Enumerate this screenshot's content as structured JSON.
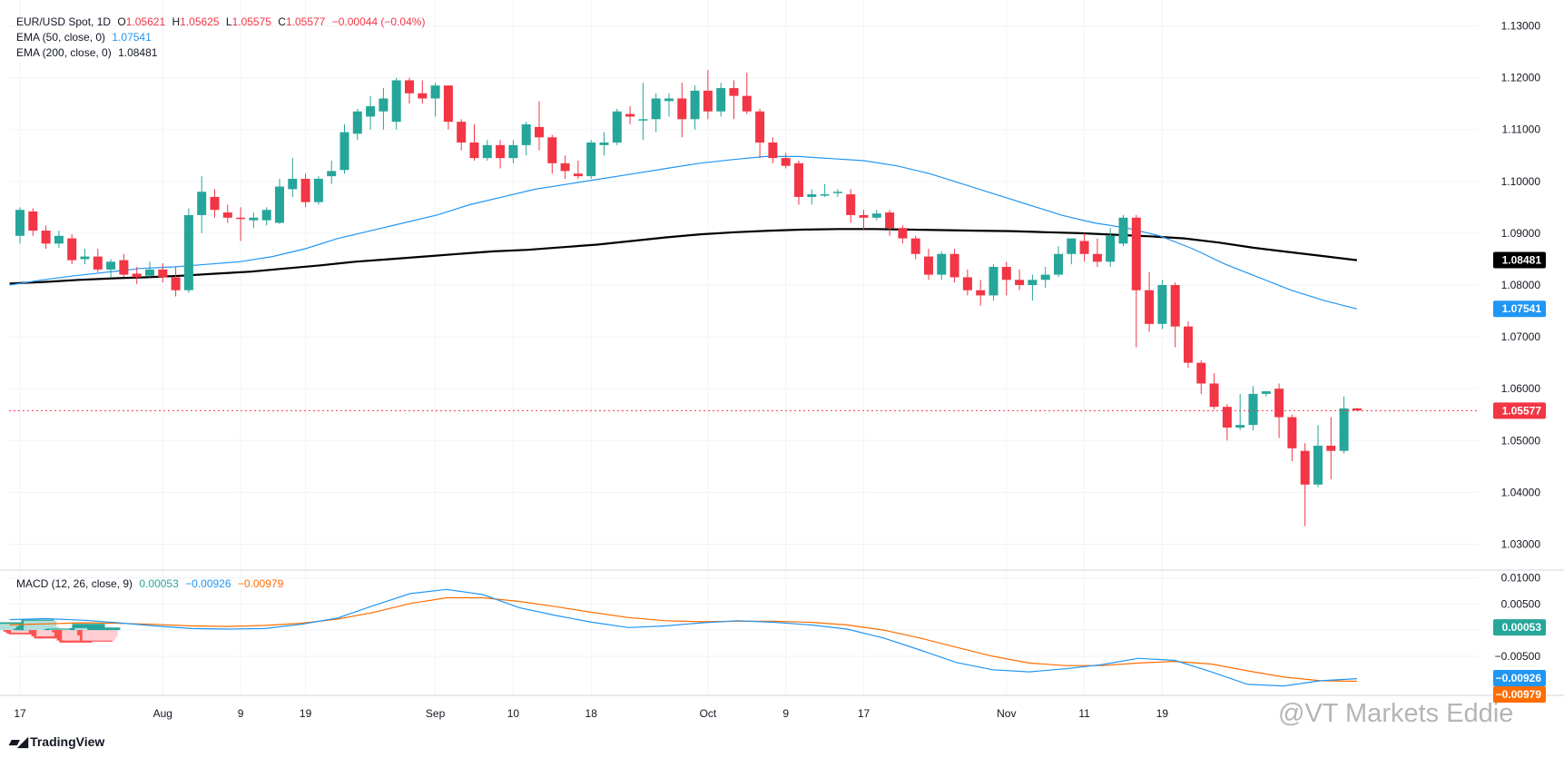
{
  "header": {
    "symbol": "EUR/USD Spot, 1D",
    "ohlc": {
      "o": "1.05621",
      "h": "1.05625",
      "l": "1.05575",
      "c": "1.05577",
      "chg": "−0.00044 (−0.04%)"
    },
    "ema50_label": "EMA (50, close, 0)",
    "ema50_value": "1.07541",
    "ema200_label": "EMA (200, close, 0)",
    "ema200_value": "1.08481",
    "macd_label": "MACD (12, 26, close, 9)",
    "macd_hist_value": "0.00053",
    "macd_value": "−0.00926",
    "macd_signal_value": "−0.00979"
  },
  "footer": {
    "brand": "TradingView",
    "watermark": "@VT Markets Eddie"
  },
  "colors": {
    "up": "#26a69a",
    "down": "#f23645",
    "ema50": "#2196f3",
    "ema200": "#000000",
    "macd": "#2196f3",
    "signal": "#ff6d00",
    "hist_up_strong": "#26a69a",
    "hist_up_weak": "#b2dfdb",
    "hist_down_strong": "#ff5252",
    "hist_down_weak": "#ffcdd2"
  },
  "chart_data": [
    {
      "type": "candlestick",
      "title": "EUR/USD Spot, 1D",
      "ylim": [
        1.025,
        1.135
      ],
      "y_ticks": [
        "1.13000",
        "1.12000",
        "1.11000",
        "1.10000",
        "1.09000",
        "1.08000",
        "1.07000",
        "1.06000",
        "1.05000",
        "1.04000",
        "1.03000"
      ],
      "x_ticks": [
        "17",
        "Aug",
        "9",
        "19",
        "Sep",
        "10",
        "18",
        "Oct",
        "9",
        "17",
        "Nov",
        "11",
        "19"
      ],
      "last_price_label": "1.05577",
      "ema200_label": "1.08481",
      "ema50_label": "1.07541",
      "candles": [
        [
          1.0895,
          1.095,
          1.088,
          1.0945
        ],
        [
          1.0942,
          1.0948,
          1.0895,
          1.0905
        ],
        [
          1.0905,
          1.0915,
          1.087,
          1.088
        ],
        [
          1.088,
          1.0905,
          1.0872,
          1.0895
        ],
        [
          1.089,
          1.0898,
          1.084,
          1.0848
        ],
        [
          1.085,
          1.087,
          1.084,
          1.0855
        ],
        [
          1.0855,
          1.087,
          1.0825,
          1.083
        ],
        [
          1.083,
          1.085,
          1.0815,
          1.0845
        ],
        [
          1.0848,
          1.086,
          1.0815,
          1.082
        ],
        [
          1.0822,
          1.0835,
          1.0802,
          1.0815
        ],
        [
          1.0818,
          1.0845,
          1.0815,
          1.083
        ],
        [
          1.083,
          1.0842,
          1.0805,
          1.0815
        ],
        [
          1.0815,
          1.0835,
          1.0778,
          1.079
        ],
        [
          1.079,
          1.0948,
          1.0785,
          1.0935
        ],
        [
          1.0935,
          1.101,
          1.09,
          1.098
        ],
        [
          1.097,
          1.0985,
          1.093,
          1.0945
        ],
        [
          1.094,
          1.0955,
          1.092,
          1.093
        ],
        [
          1.093,
          1.095,
          1.0885,
          1.0928
        ],
        [
          1.0925,
          1.094,
          1.091,
          1.093
        ],
        [
          1.0925,
          1.095,
          1.0915,
          1.0945
        ],
        [
          1.092,
          1.1005,
          1.0918,
          1.099
        ],
        [
          1.0985,
          1.1045,
          1.097,
          1.1005
        ],
        [
          1.1005,
          1.1015,
          1.095,
          1.096
        ],
        [
          1.096,
          1.101,
          1.0955,
          1.1005
        ],
        [
          1.101,
          1.104,
          1.0995,
          1.102
        ],
        [
          1.1022,
          1.111,
          1.1015,
          1.1095
        ],
        [
          1.1092,
          1.114,
          1.108,
          1.1135
        ],
        [
          1.1125,
          1.1165,
          1.11,
          1.1145
        ],
        [
          1.1135,
          1.118,
          1.11,
          1.116
        ],
        [
          1.1115,
          1.12,
          1.11,
          1.1195
        ],
        [
          1.1195,
          1.12,
          1.115,
          1.117
        ],
        [
          1.117,
          1.1195,
          1.115,
          1.116
        ],
        [
          1.116,
          1.119,
          1.1125,
          1.1185
        ],
        [
          1.1185,
          1.1185,
          1.11,
          1.1115
        ],
        [
          1.1115,
          1.112,
          1.106,
          1.1075
        ],
        [
          1.1075,
          1.111,
          1.104,
          1.1045
        ],
        [
          1.1045,
          1.108,
          1.104,
          1.107
        ],
        [
          1.107,
          1.108,
          1.1025,
          1.1045
        ],
        [
          1.1045,
          1.108,
          1.1035,
          1.107
        ],
        [
          1.107,
          1.1115,
          1.105,
          1.111
        ],
        [
          1.1105,
          1.1155,
          1.106,
          1.1085
        ],
        [
          1.1085,
          1.109,
          1.1015,
          1.1035
        ],
        [
          1.1035,
          1.105,
          1.1005,
          1.102
        ],
        [
          1.1015,
          1.104,
          1.1005,
          1.101
        ],
        [
          1.101,
          1.108,
          1.1005,
          1.1075
        ],
        [
          1.107,
          1.1095,
          1.105,
          1.1075
        ],
        [
          1.1075,
          1.114,
          1.107,
          1.1135
        ],
        [
          1.113,
          1.1145,
          1.111,
          1.1125
        ],
        [
          1.112,
          1.119,
          1.108,
          1.112
        ],
        [
          1.112,
          1.117,
          1.1095,
          1.116
        ],
        [
          1.1155,
          1.117,
          1.1125,
          1.116
        ],
        [
          1.116,
          1.119,
          1.1085,
          1.112
        ],
        [
          1.112,
          1.1185,
          1.11,
          1.1175
        ],
        [
          1.1175,
          1.1215,
          1.112,
          1.1135
        ],
        [
          1.1135,
          1.119,
          1.1125,
          1.118
        ],
        [
          1.118,
          1.1195,
          1.112,
          1.1165
        ],
        [
          1.1165,
          1.121,
          1.113,
          1.1135
        ],
        [
          1.1135,
          1.114,
          1.1045,
          1.1075
        ],
        [
          1.1075,
          1.1085,
          1.1035,
          1.1045
        ],
        [
          1.1045,
          1.1055,
          1.1025,
          1.103
        ],
        [
          1.1035,
          1.104,
          1.0955,
          1.097
        ],
        [
          1.097,
          1.0985,
          1.0955,
          1.0975
        ],
        [
          1.0975,
          1.0995,
          1.097,
          1.0975
        ],
        [
          1.098,
          1.0985,
          1.097,
          1.098
        ],
        [
          1.0975,
          1.0985,
          1.092,
          1.0935
        ],
        [
          1.0935,
          1.0945,
          1.0905,
          1.093
        ],
        [
          1.093,
          1.0945,
          1.0925,
          1.0938
        ],
        [
          1.094,
          1.0945,
          1.0895,
          1.091
        ],
        [
          1.091,
          1.0915,
          1.088,
          1.089
        ],
        [
          1.089,
          1.0895,
          1.085,
          1.086
        ],
        [
          1.0855,
          1.087,
          1.081,
          1.082
        ],
        [
          1.082,
          1.0865,
          1.081,
          1.086
        ],
        [
          1.086,
          1.087,
          1.0805,
          1.0815
        ],
        [
          1.0815,
          1.083,
          1.078,
          1.079
        ],
        [
          1.079,
          1.081,
          1.076,
          1.078
        ],
        [
          1.078,
          1.084,
          1.077,
          1.0835
        ],
        [
          1.0835,
          1.0845,
          1.078,
          1.081
        ],
        [
          1.081,
          1.083,
          1.079,
          1.08
        ],
        [
          1.08,
          1.082,
          1.077,
          1.081
        ],
        [
          1.081,
          1.0835,
          1.0795,
          1.082
        ],
        [
          1.082,
          1.0875,
          1.0815,
          1.086
        ],
        [
          1.086,
          1.089,
          1.084,
          1.089
        ],
        [
          1.0885,
          1.09,
          1.0845,
          1.086
        ],
        [
          1.086,
          1.089,
          1.0835,
          1.0845
        ],
        [
          1.0845,
          1.091,
          1.0835,
          1.0895
        ],
        [
          1.088,
          1.0935,
          1.0875,
          1.093
        ],
        [
          1.093,
          1.0935,
          1.068,
          1.079
        ],
        [
          1.079,
          1.0825,
          1.071,
          1.0725
        ],
        [
          1.0725,
          1.081,
          1.0715,
          1.08
        ],
        [
          1.08,
          1.0805,
          1.068,
          1.072
        ],
        [
          1.072,
          1.073,
          1.064,
          1.065
        ],
        [
          1.065,
          1.0655,
          1.059,
          1.061
        ],
        [
          1.061,
          1.063,
          1.056,
          1.0565
        ],
        [
          1.0565,
          1.057,
          1.05,
          1.0525
        ],
        [
          1.0525,
          1.059,
          1.052,
          1.053
        ],
        [
          1.053,
          1.0605,
          1.052,
          1.059
        ],
        [
          1.059,
          1.0595,
          1.0585,
          1.0595
        ],
        [
          1.06,
          1.061,
          1.0505,
          1.0545
        ],
        [
          1.0545,
          1.055,
          1.046,
          1.0485
        ],
        [
          1.048,
          1.0495,
          1.0335,
          1.0415
        ],
        [
          1.0415,
          1.053,
          1.041,
          1.049
        ],
        [
          1.049,
          1.0545,
          1.0425,
          1.048
        ],
        [
          1.048,
          1.0585,
          1.0475,
          1.0562
        ],
        [
          1.0562,
          1.0563,
          1.0557,
          1.0558
        ]
      ],
      "ema50": [
        1.08,
        1.081,
        1.0818,
        1.0825,
        1.0832,
        1.0835,
        1.084,
        1.0845,
        1.0855,
        1.087,
        1.089,
        1.0905,
        1.092,
        1.0935,
        1.0955,
        1.097,
        1.0985,
        1.0995,
        1.1005,
        1.1015,
        1.1025,
        1.1035,
        1.1042,
        1.1048,
        1.1048,
        1.1044,
        1.104,
        1.103,
        1.1015,
        1.0995,
        1.0975,
        1.0955,
        1.0935,
        1.092,
        1.091,
        1.0895,
        1.087,
        1.084,
        1.0815,
        1.079,
        1.077,
        1.0754
      ],
      "ema200": [
        1.0803,
        1.0806,
        1.081,
        1.0813,
        1.0815,
        1.0818,
        1.0822,
        1.0826,
        1.0832,
        1.0838,
        1.0845,
        1.085,
        1.0855,
        1.086,
        1.0865,
        1.0868,
        1.0873,
        1.0878,
        1.0885,
        1.0892,
        1.0898,
        1.0902,
        1.0905,
        1.0907,
        1.0908,
        1.0908,
        1.0907,
        1.0906,
        1.0905,
        1.0904,
        1.0902,
        1.09,
        1.0897,
        1.0894,
        1.089,
        1.0882,
        1.0872,
        1.0864,
        1.0856,
        1.0848
      ]
    },
    {
      "type": "bar",
      "title": "MACD (12, 26, close, 9)",
      "ylim": [
        -0.0125,
        0.0115
      ],
      "y_ticks": [
        "0.01000",
        "0.00500",
        "0.00000",
        "−0.00500"
      ],
      "macd_label": "−0.00926",
      "signal_label": "−0.00979",
      "hist_label": "0.00053",
      "macd": [
        0.002,
        0.0022,
        0.0019,
        0.0014,
        0.0008,
        0.0003,
        0.0002,
        0.0003,
        0.0011,
        0.0023,
        0.0047,
        0.007,
        0.0078,
        0.0068,
        0.0043,
        0.0028,
        0.0015,
        0.0005,
        0.0008,
        0.0014,
        0.0018,
        0.0015,
        0.001,
        0.0002,
        -0.0015,
        -0.0038,
        -0.0062,
        -0.0076,
        -0.008,
        -0.0074,
        -0.0066,
        -0.0054,
        -0.0058,
        -0.008,
        -0.0104,
        -0.0107,
        -0.0097,
        -0.0093
      ],
      "signal": [
        0.001,
        0.0012,
        0.0014,
        0.0013,
        0.0011,
        0.0008,
        0.0007,
        0.0009,
        0.0013,
        0.0021,
        0.0034,
        0.0051,
        0.0062,
        0.0062,
        0.0055,
        0.0045,
        0.0034,
        0.0024,
        0.0018,
        0.0016,
        0.0017,
        0.0017,
        0.0015,
        0.001,
        0.0,
        -0.0015,
        -0.0033,
        -0.005,
        -0.0063,
        -0.0068,
        -0.0068,
        -0.0063,
        -0.006,
        -0.0065,
        -0.0078,
        -0.009,
        -0.0097,
        -0.0098
      ],
      "histogram": [
        0.0015,
        0.0012,
        0.0007,
        0.0002,
        -0.0003,
        -0.0006,
        -0.0008,
        -0.0005,
        0.0003,
        0.0007,
        0.0012,
        0.002,
        0.0018,
        0.0006,
        -0.0008,
        -0.0012,
        -0.0016,
        -0.0012,
        -0.0008,
        -0.0004,
        0.0002,
        0.0003,
        0.0001,
        -0.0004,
        -0.0014,
        -0.002,
        -0.0024,
        -0.002,
        -0.0012,
        -0.0005,
        0.0004,
        0.0012,
        0.0004,
        -0.001,
        -0.0022,
        -0.002,
        -0.0014,
        0.0005
      ]
    }
  ]
}
